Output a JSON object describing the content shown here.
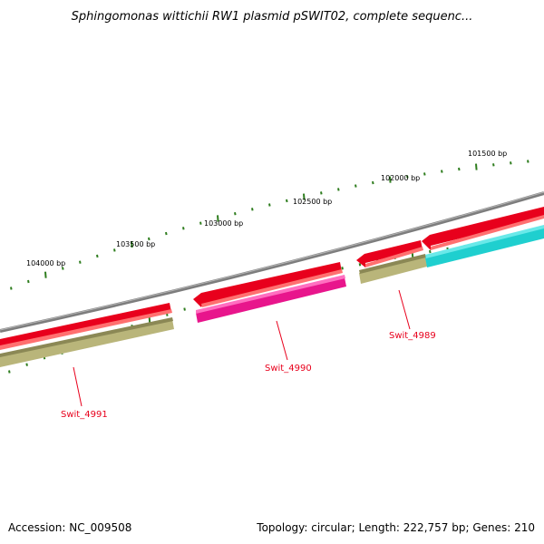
{
  "title": "Sphingomonas wittichii RW1 plasmid pSWIT02, complete sequenc...",
  "footer": {
    "accession": "Accession: NC_009508",
    "summary": "Topology: circular; Length: 222,757 bp; Genes: 210"
  },
  "colors": {
    "backbone": "#8a8a8a",
    "gene_red": "#e8001c",
    "gene_magenta": "#e8158c",
    "gene_khaki": "#b9b57a",
    "gene_cyan": "#1fcfcf",
    "tick": "#2e7d1e",
    "label_red": "#e8001c"
  },
  "bp_labels": [
    {
      "text": "104000 bp"
    },
    {
      "text": "103500 bp"
    },
    {
      "text": "103000 bp"
    },
    {
      "text": "102500 bp"
    },
    {
      "text": "102000 bp"
    },
    {
      "text": "101500 bp"
    }
  ],
  "genes": [
    {
      "label": "Swit_4991"
    },
    {
      "label": "Swit_4990"
    },
    {
      "label": "Swit_4989"
    }
  ]
}
